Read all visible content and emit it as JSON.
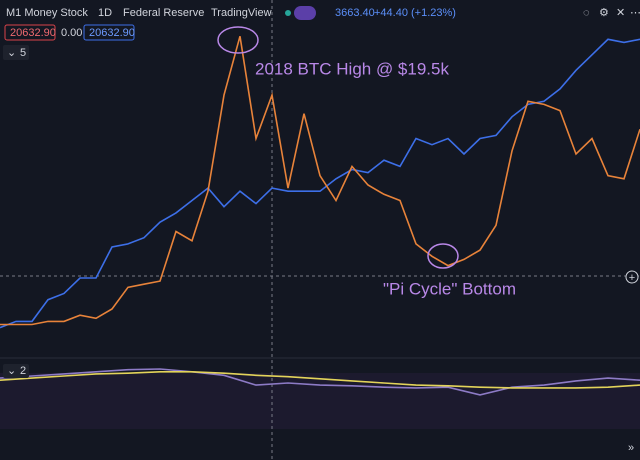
{
  "header": {
    "title": "M1 Money Stock",
    "interval": "1D",
    "source": "Federal Reserve",
    "platform": "TradingView",
    "price": "3663.40",
    "change": "+44.40 (+1.23%)"
  },
  "legend": {
    "values": [
      "20632.90",
      "0.00",
      "20632.90"
    ],
    "collapse": "5"
  },
  "lower_pane": {
    "label": "2"
  },
  "chart_data": [
    {
      "type": "line",
      "ylim": [
        0,
        100
      ],
      "annotations": [
        "2018 BTC High @ $19.5k",
        "\"Pi Cycle\" Bottom"
      ],
      "series": [
        {
          "color": "#3d6fe8",
          "values": [
            4,
            6,
            6,
            13,
            15,
            20,
            20,
            30,
            31,
            33,
            38,
            41,
            45,
            49,
            43,
            48,
            44,
            49,
            48,
            48,
            48,
            52,
            55,
            54,
            58,
            56,
            65,
            63,
            65,
            60,
            65,
            66,
            72,
            76,
            77,
            81,
            87,
            92,
            97,
            96,
            97
          ]
        },
        {
          "color": "#e8833a",
          "values": [
            5,
            5,
            5,
            6,
            6,
            8,
            7,
            10,
            17,
            18,
            19,
            35,
            32,
            48,
            79,
            98,
            65,
            79,
            49,
            73,
            53,
            45,
            56,
            50,
            47,
            45,
            31,
            27,
            24,
            26,
            29,
            37,
            61,
            77,
            76,
            74,
            60,
            65,
            53,
            52,
            68
          ]
        }
      ]
    },
    {
      "type": "line",
      "ylim": [
        0,
        100
      ],
      "series": [
        {
          "color": "#8d7bc6",
          "values": [
            67,
            70,
            73,
            76,
            79,
            80,
            76,
            71,
            57,
            60,
            57,
            56,
            54,
            53,
            54,
            43,
            54,
            57,
            63,
            67,
            64
          ]
        },
        {
          "color": "#e3d45a",
          "values": [
            64,
            67,
            70,
            73,
            74,
            76,
            76,
            74,
            71,
            69,
            66,
            63,
            60,
            57,
            56,
            54,
            53,
            53,
            53,
            54,
            57
          ]
        }
      ]
    }
  ]
}
